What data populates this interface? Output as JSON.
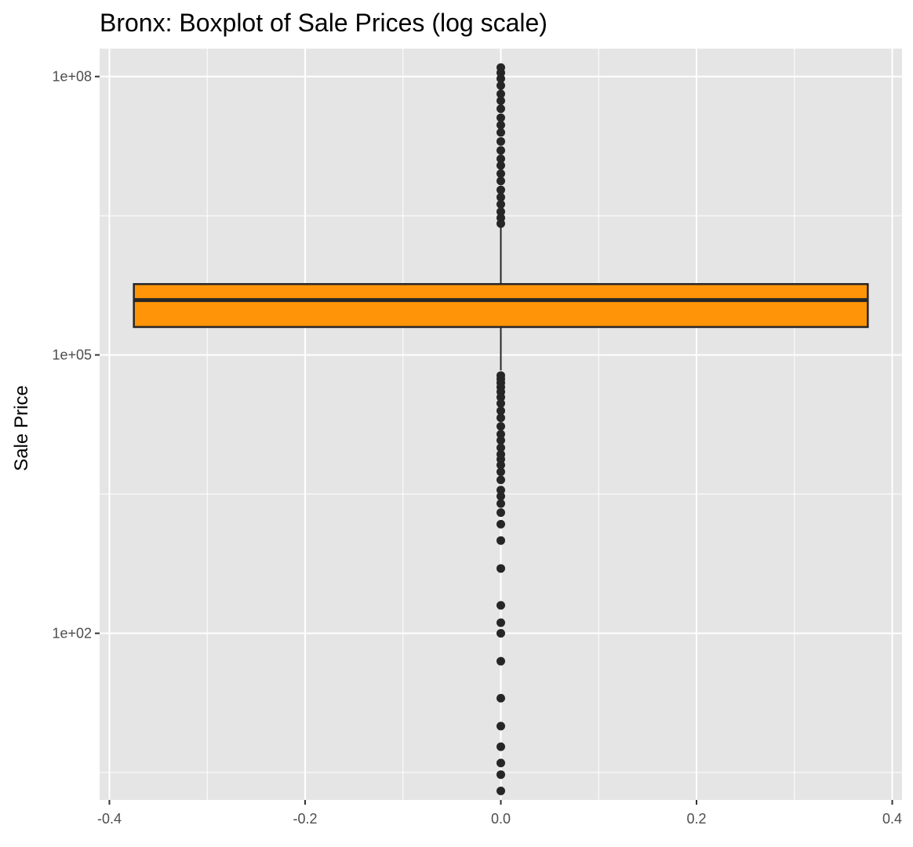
{
  "chart_data": {
    "type": "boxplot",
    "title": "Bronx: Boxplot of Sale Prices (log scale)",
    "xlabel": "",
    "ylabel": "Sale Price",
    "y_scale": "log10",
    "x_ticks": [
      "-0.4",
      "-0.2",
      "0.0",
      "0.2",
      "0.4"
    ],
    "x_tick_values": [
      -0.4,
      -0.2,
      0.0,
      0.2,
      0.4
    ],
    "y_ticks": [
      "1e+02",
      "1e+05",
      "1e+08"
    ],
    "y_tick_values": [
      100,
      100000,
      100000000
    ],
    "xlim": [
      -0.41,
      0.41
    ],
    "ylim": [
      1.6,
      200000000
    ],
    "grid": true,
    "box": {
      "x_center": 0.0,
      "x_min": -0.375,
      "x_max": 0.375,
      "q1": 200000,
      "median": 390000,
      "q3": 580000,
      "whisker_low": 68000,
      "whisker_high": 2500000,
      "fill_color": "#ff9408",
      "line_color": "#262626"
    },
    "outliers_high": [
      2600000,
      3000000,
      3500000,
      4200000,
      5000000,
      6000000,
      7500000,
      9000000,
      11000000,
      13000000,
      16000000,
      20000000,
      25000000,
      30000000,
      36000000,
      45000000,
      55000000,
      65000000,
      80000000,
      95000000,
      110000000,
      125000000
    ],
    "outliers_low": [
      60000,
      55000,
      50000,
      45000,
      40000,
      35000,
      30000,
      25000,
      21000,
      17000,
      14000,
      12000,
      10000,
      8500,
      7500,
      6500,
      5500,
      4500,
      3500,
      3000,
      2500,
      2000,
      1500,
      1000,
      500,
      200,
      130,
      100,
      50,
      20,
      10,
      6,
      4,
      3,
      2
    ]
  }
}
